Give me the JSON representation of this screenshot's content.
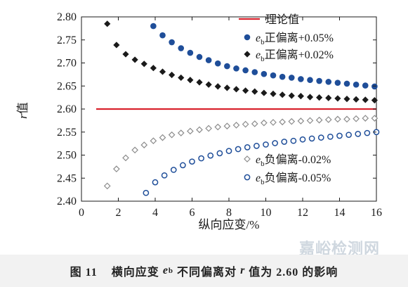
{
  "colors": {
    "theory": "#d9232e",
    "blue": "#1f4e99",
    "black": "#1a1a1a",
    "gray": "#8c8c8c"
  },
  "chart_data": {
    "type": "scatter",
    "xlabel": "纵向应变/%",
    "ylabel_var": "r",
    "ylabel_suffix": "值",
    "xlim": [
      0,
      16
    ],
    "ylim": [
      2.4,
      2.8
    ],
    "xticks": [
      "0",
      "2",
      "4",
      "6",
      "8",
      "10",
      "12",
      "14",
      "16"
    ],
    "yticks": [
      "2.40",
      "2.45",
      "2.50",
      "2.55",
      "2.60",
      "2.65",
      "2.70",
      "2.75",
      "2.80"
    ],
    "legend_position_upper": "top-right",
    "legend_position_lower": "bottom-right",
    "series": [
      {
        "name": "理论值",
        "style": "line",
        "color": "#d9232e",
        "x": [
          0.8,
          16
        ],
        "y": [
          2.6,
          2.6
        ]
      },
      {
        "name": "正偏离+0.05%",
        "legend_var": "e",
        "legend_sub": "b",
        "style": "circle-filled",
        "color": "#1f4e99",
        "x": [
          3.9,
          4.4,
          4.9,
          5.4,
          5.9,
          6.4,
          6.9,
          7.4,
          7.9,
          8.4,
          8.9,
          9.4,
          9.9,
          10.4,
          10.9,
          11.4,
          11.9,
          12.4,
          12.9,
          13.4,
          13.9,
          14.4,
          14.9,
          15.4,
          15.9
        ],
        "y": [
          2.78,
          2.76,
          2.745,
          2.732,
          2.722,
          2.713,
          2.706,
          2.699,
          2.693,
          2.688,
          2.684,
          2.68,
          2.676,
          2.673,
          2.67,
          2.668,
          2.665,
          2.663,
          2.661,
          2.659,
          2.657,
          2.655,
          2.653,
          2.651,
          2.649
        ]
      },
      {
        "name": "正偏离+0.02%",
        "legend_var": "e",
        "legend_sub": "b",
        "style": "diamond-filled",
        "color": "#1a1a1a",
        "x": [
          1.4,
          1.9,
          2.4,
          2.9,
          3.4,
          3.9,
          4.4,
          4.9,
          5.4,
          5.9,
          6.4,
          6.9,
          7.4,
          7.9,
          8.4,
          8.9,
          9.4,
          9.9,
          10.4,
          10.9,
          11.4,
          11.9,
          12.4,
          12.9,
          13.4,
          13.9,
          14.4,
          14.9,
          15.4,
          15.9
        ],
        "y": [
          2.785,
          2.739,
          2.719,
          2.707,
          2.698,
          2.689,
          2.681,
          2.674,
          2.668,
          2.663,
          2.658,
          2.653,
          2.649,
          2.646,
          2.643,
          2.64,
          2.638,
          2.635,
          2.633,
          2.631,
          2.629,
          2.628,
          2.626,
          2.625,
          2.624,
          2.623,
          2.622,
          2.621,
          2.62,
          2.619
        ]
      },
      {
        "name": "负偏离-0.02%",
        "legend_var": "e",
        "legend_sub": "b",
        "style": "diamond-open",
        "color": "#8c8c8c",
        "x": [
          1.4,
          1.9,
          2.4,
          2.9,
          3.4,
          3.9,
          4.4,
          4.9,
          5.4,
          5.9,
          6.4,
          6.9,
          7.4,
          7.9,
          8.4,
          8.9,
          9.4,
          9.9,
          10.4,
          10.9,
          11.4,
          11.9,
          12.4,
          12.9,
          13.4,
          13.9,
          14.4,
          14.9,
          15.4,
          15.9
        ],
        "y": [
          2.433,
          2.47,
          2.494,
          2.511,
          2.522,
          2.531,
          2.538,
          2.544,
          2.548,
          2.552,
          2.555,
          2.558,
          2.561,
          2.563,
          2.565,
          2.567,
          2.568,
          2.57,
          2.571,
          2.572,
          2.573,
          2.574,
          2.575,
          2.576,
          2.577,
          2.578,
          2.578,
          2.579,
          2.58,
          2.58
        ]
      },
      {
        "name": "负偏离-0.05%",
        "legend_var": "e",
        "legend_sub": "b",
        "style": "circle-open",
        "color": "#1f4e99",
        "x": [
          3.5,
          4.0,
          4.5,
          5.0,
          5.5,
          6.0,
          6.5,
          7.0,
          7.5,
          8.0,
          8.5,
          9.0,
          9.5,
          10.0,
          10.5,
          11.0,
          11.5,
          12.0,
          12.5,
          13.0,
          13.5,
          14.0,
          14.5,
          15.0,
          15.5,
          16.0
        ],
        "y": [
          2.418,
          2.441,
          2.456,
          2.468,
          2.478,
          2.486,
          2.493,
          2.499,
          2.504,
          2.509,
          2.513,
          2.517,
          2.52,
          2.523,
          2.526,
          2.529,
          2.531,
          2.534,
          2.536,
          2.538,
          2.54,
          2.542,
          2.544,
          2.546,
          2.548,
          2.55
        ]
      }
    ]
  },
  "caption": {
    "figure_number": "图 11",
    "text_before_var": "横向应变",
    "var_e": "e",
    "var_e_sub": "b",
    "text_middle": "不同偏离对",
    "var_r": "r",
    "text_end": "值为 2.60 的影响"
  },
  "watermark": "嘉峪检测网"
}
